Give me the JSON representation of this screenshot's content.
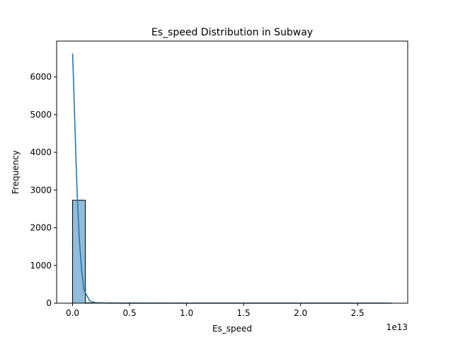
{
  "chart_data": {
    "type": "bar",
    "title": "Es_speed Distribution in Subway",
    "xlabel": "Es_speed",
    "ylabel": "Frequency",
    "x_offset_label": "1e13",
    "xlim": [
      -0.14,
      2.94
    ],
    "ylim": [
      0,
      6950
    ],
    "x_ticks": [
      0.0,
      0.5,
      1.0,
      1.5,
      2.0,
      2.5
    ],
    "x_tick_labels": [
      "0.0",
      "0.5",
      "1.0",
      "1.5",
      "2.0",
      "2.5"
    ],
    "y_ticks": [
      0,
      1000,
      2000,
      3000,
      4000,
      5000,
      6000
    ],
    "y_tick_labels": [
      "0",
      "1000",
      "2000",
      "3000",
      "4000",
      "5000",
      "6000"
    ],
    "grid": false,
    "bin_width": 0.112,
    "bins_start": 0.0,
    "counts": [
      2730,
      8,
      6,
      4,
      3,
      2,
      2,
      1,
      1,
      1,
      1,
      1,
      1,
      1,
      1,
      1,
      1,
      1,
      1,
      1,
      1,
      1,
      1,
      1,
      1
    ],
    "kde": {
      "x": [
        0.0,
        0.005,
        0.01,
        0.015,
        0.02,
        0.03,
        0.04,
        0.05,
        0.06,
        0.08,
        0.1,
        0.15,
        0.2,
        0.3,
        0.5,
        1.0,
        1.5,
        2.0,
        2.8
      ],
      "y": [
        6620,
        6200,
        5750,
        5250,
        4750,
        3800,
        2950,
        2250,
        1650,
        850,
        350,
        60,
        12,
        3,
        1,
        0,
        0,
        0,
        0
      ]
    },
    "colors": {
      "bar_fill": "#92bcd9",
      "bar_edge": "#000000",
      "kde_line": "#2577b1"
    }
  }
}
